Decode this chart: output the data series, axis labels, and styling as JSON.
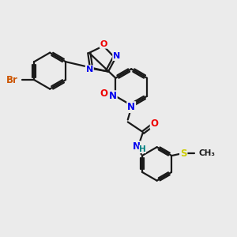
{
  "bg_color": "#ebebeb",
  "bond_color": "#1a1a1a",
  "bond_width": 1.6,
  "atom_colors": {
    "Br": "#cc5500",
    "N": "#0000ee",
    "O": "#ee0000",
    "S": "#cccc00",
    "NH": "#008080",
    "C": "#1a1a1a"
  },
  "font_size": 8.5,
  "fig_width": 3.0,
  "fig_height": 3.0,
  "dpi": 100
}
